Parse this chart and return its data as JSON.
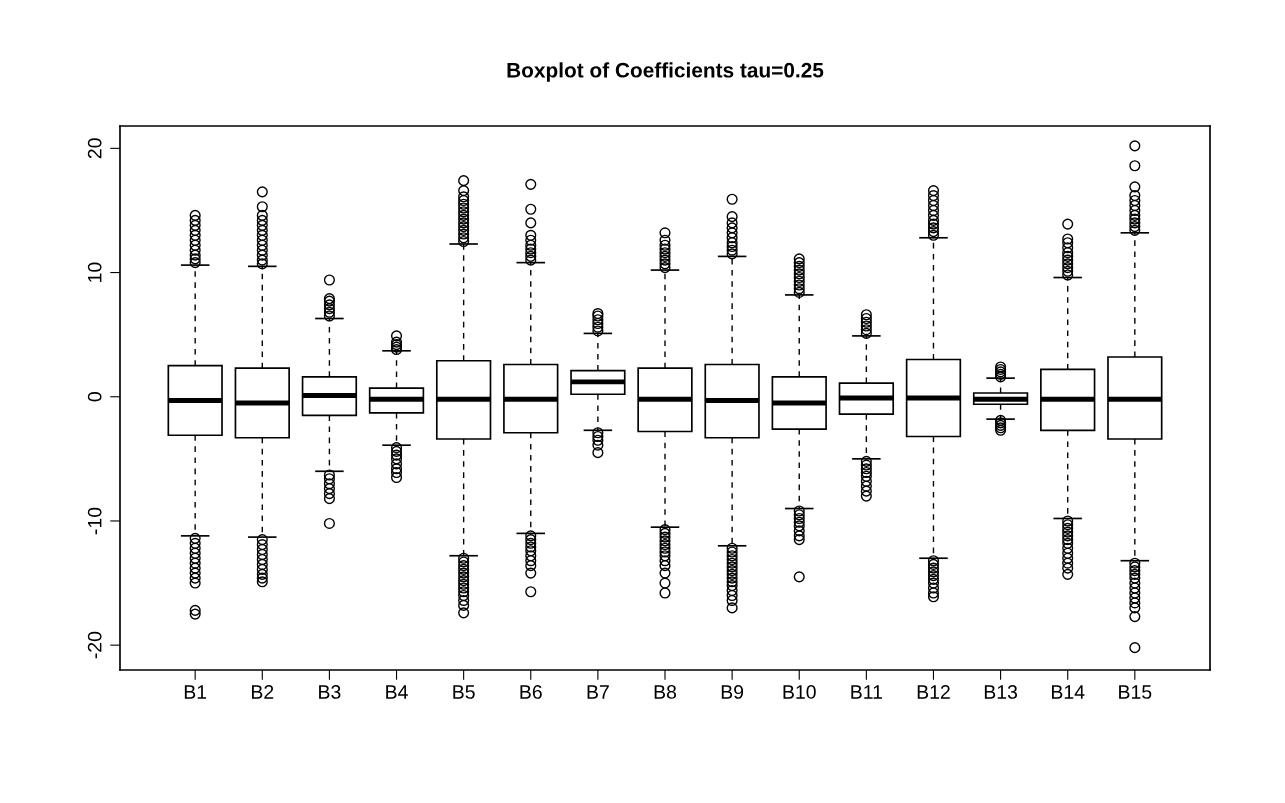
{
  "chart_data": {
    "type": "box",
    "title": "Boxplot of Coefficients tau=0.25",
    "categories": [
      "B1",
      "B2",
      "B3",
      "B4",
      "B5",
      "B6",
      "B7",
      "B8",
      "B9",
      "B10",
      "B11",
      "B12",
      "B13",
      "B14",
      "B15"
    ],
    "ylim": [
      -22,
      21.8
    ],
    "yticks": [
      -20,
      -10,
      0,
      10,
      20
    ],
    "grid": false,
    "marker": "circle",
    "boxes": [
      {
        "low": -11.2,
        "q1": -3.1,
        "median": -0.3,
        "q3": 2.5,
        "high": 10.6,
        "outliers": [
          10.8,
          11.1,
          11.4,
          11.8,
          12.2,
          12.6,
          13.0,
          13.4,
          13.8,
          14.2,
          14.6,
          -11.4,
          -11.8,
          -12.2,
          -12.6,
          -13.0,
          -13.4,
          -13.8,
          -14.2,
          -14.6,
          -15.0,
          -17.2,
          -17.5
        ]
      },
      {
        "low": -11.3,
        "q1": -3.3,
        "median": -0.5,
        "q3": 2.3,
        "high": 10.5,
        "outliers": [
          10.7,
          11.0,
          11.4,
          11.8,
          12.2,
          12.6,
          13.0,
          13.4,
          13.8,
          14.2,
          14.6,
          15.3,
          16.5,
          -11.5,
          -11.9,
          -12.3,
          -12.7,
          -13.1,
          -13.5,
          -13.9,
          -14.3,
          -14.6,
          -14.9
        ]
      },
      {
        "low": -6.0,
        "q1": -1.5,
        "median": 0.1,
        "q3": 1.6,
        "high": 6.3,
        "outliers": [
          6.5,
          6.8,
          7.1,
          7.4,
          7.7,
          7.9,
          9.4,
          -6.3,
          -6.6,
          -7.0,
          -7.4,
          -7.8,
          -8.2,
          -10.2
        ]
      },
      {
        "low": -3.9,
        "q1": -1.3,
        "median": -0.2,
        "q3": 0.7,
        "high": 3.7,
        "outliers": [
          3.8,
          4.0,
          4.2,
          4.4,
          4.9,
          -4.1,
          -4.4,
          -4.7,
          -5.0,
          -5.4,
          -5.8,
          -6.1,
          -6.5
        ]
      },
      {
        "low": -12.8,
        "q1": -3.4,
        "median": -0.2,
        "q3": 2.9,
        "high": 12.3,
        "outliers": [
          12.5,
          12.8,
          13.1,
          13.4,
          13.7,
          14.0,
          14.3,
          14.6,
          14.9,
          15.2,
          15.5,
          15.8,
          16.1,
          16.6,
          17.4,
          -13.0,
          -13.3,
          -13.6,
          -13.9,
          -14.2,
          -14.5,
          -14.8,
          -15.1,
          -15.4,
          -15.7,
          -16.0,
          -16.4,
          -16.8,
          -17.4
        ]
      },
      {
        "low": -11.0,
        "q1": -2.9,
        "median": -0.2,
        "q3": 2.6,
        "high": 10.8,
        "outliers": [
          11.0,
          11.3,
          11.6,
          11.9,
          12.2,
          12.6,
          13.0,
          14.0,
          15.1,
          17.1,
          -11.2,
          -11.5,
          -11.8,
          -12.1,
          -12.4,
          -12.8,
          -13.2,
          -13.6,
          -14.2,
          -15.7
        ]
      },
      {
        "low": -2.7,
        "q1": 0.2,
        "median": 1.2,
        "q3": 2.1,
        "high": 5.1,
        "outliers": [
          5.3,
          5.6,
          5.9,
          6.2,
          6.5,
          6.7,
          -2.9,
          -3.2,
          -3.5,
          -3.9,
          -4.5
        ]
      },
      {
        "low": -10.5,
        "q1": -2.8,
        "median": -0.2,
        "q3": 2.3,
        "high": 10.2,
        "outliers": [
          10.4,
          10.7,
          11.0,
          11.3,
          11.6,
          11.9,
          12.2,
          12.6,
          13.2,
          -10.7,
          -11.0,
          -11.3,
          -11.6,
          -11.9,
          -12.2,
          -12.5,
          -12.8,
          -13.2,
          -13.6,
          -14.2,
          -15.0,
          -15.8
        ]
      },
      {
        "low": -12.0,
        "q1": -3.3,
        "median": -0.3,
        "q3": 2.6,
        "high": 11.3,
        "outliers": [
          11.5,
          11.8,
          12.1,
          12.4,
          12.8,
          13.2,
          13.6,
          14.0,
          14.5,
          15.9,
          -12.2,
          -12.5,
          -12.8,
          -13.1,
          -13.4,
          -13.7,
          -14.0,
          -14.3,
          -14.6,
          -14.9,
          -15.2,
          -15.6,
          -16.0,
          -16.4,
          -17.0
        ]
      },
      {
        "low": -9.0,
        "q1": -2.6,
        "median": -0.5,
        "q3": 1.6,
        "high": 8.2,
        "outliers": [
          8.4,
          8.7,
          9.0,
          9.3,
          9.6,
          9.9,
          10.2,
          10.5,
          10.8,
          11.1,
          -9.2,
          -9.5,
          -9.8,
          -10.1,
          -10.4,
          -10.8,
          -11.2,
          -11.5,
          -14.5
        ]
      },
      {
        "low": -5.0,
        "q1": -1.4,
        "median": -0.1,
        "q3": 1.1,
        "high": 4.9,
        "outliers": [
          5.1,
          5.4,
          5.7,
          6.0,
          6.3,
          6.6,
          -5.2,
          -5.5,
          -5.8,
          -6.1,
          -6.4,
          -6.8,
          -7.2,
          -7.6,
          -8.0
        ]
      },
      {
        "low": -13.0,
        "q1": -3.2,
        "median": -0.1,
        "q3": 3.0,
        "high": 12.8,
        "outliers": [
          13.0,
          13.3,
          13.6,
          13.9,
          14.2,
          14.6,
          15.0,
          15.4,
          15.8,
          16.2,
          16.6,
          -13.2,
          -13.5,
          -13.8,
          -14.1,
          -14.4,
          -14.7,
          -15.0,
          -15.4,
          -15.8,
          -16.1
        ]
      },
      {
        "low": -1.8,
        "q1": -0.6,
        "median": -0.2,
        "q3": 0.3,
        "high": 1.5,
        "outliers": [
          1.6,
          1.8,
          2.0,
          2.2,
          2.4,
          -1.9,
          -2.1,
          -2.3,
          -2.5,
          -2.7
        ]
      },
      {
        "low": -9.8,
        "q1": -2.7,
        "median": -0.2,
        "q3": 2.2,
        "high": 9.6,
        "outliers": [
          9.8,
          10.1,
          10.4,
          10.7,
          11.0,
          11.3,
          11.6,
          12.0,
          12.4,
          12.7,
          13.9,
          -10.0,
          -10.3,
          -10.6,
          -10.9,
          -11.2,
          -11.5,
          -11.8,
          -12.2,
          -12.6,
          -13.0,
          -13.4,
          -13.8,
          -14.3
        ]
      },
      {
        "low": -13.2,
        "q1": -3.4,
        "median": -0.2,
        "q3": 3.2,
        "high": 13.2,
        "outliers": [
          13.4,
          13.7,
          14.0,
          14.3,
          14.6,
          15.0,
          15.4,
          15.8,
          16.2,
          16.9,
          18.6,
          20.2,
          -13.4,
          -13.7,
          -14.0,
          -14.3,
          -14.6,
          -15.0,
          -15.4,
          -15.8,
          -16.2,
          -16.6,
          -17.0,
          -17.7,
          -20.2
        ]
      }
    ]
  }
}
